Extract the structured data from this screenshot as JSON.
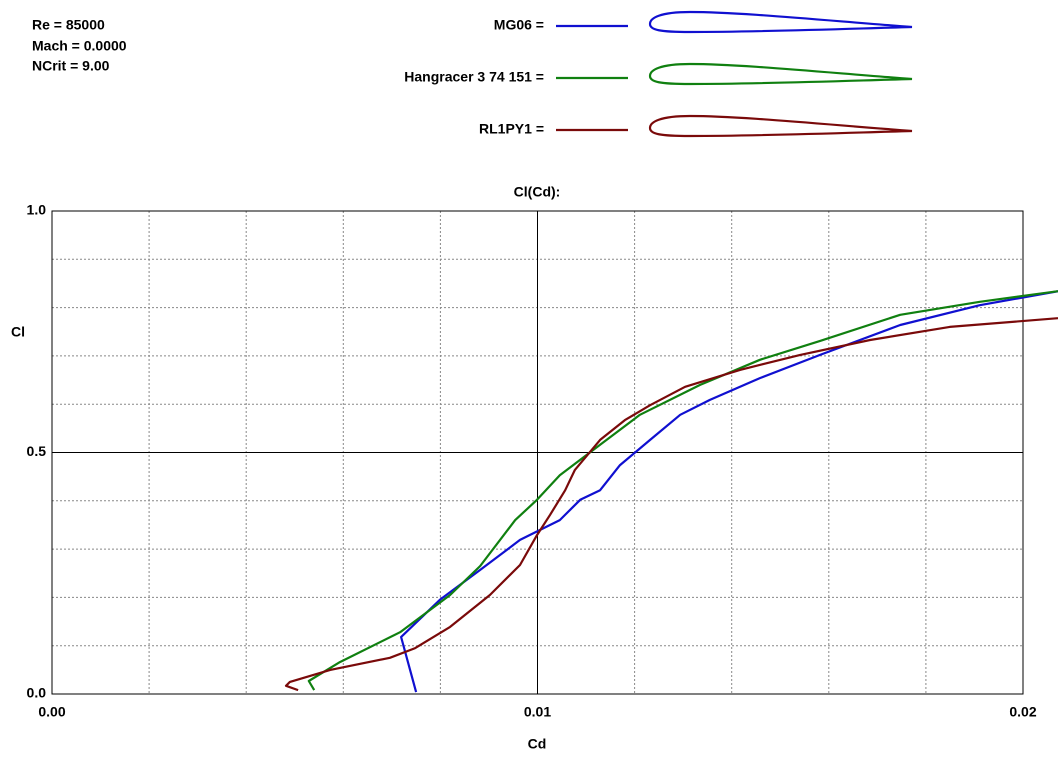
{
  "chart_data": {
    "type": "line",
    "title": "Cl(Cd):",
    "x_label": "Cd",
    "y_label": "Cl",
    "annotations": [
      "Re = 85000",
      "Mach = 0.0000",
      "NCrit = 9.00"
    ],
    "xlim": [
      0,
      0.02
    ],
    "ylim": [
      0,
      1
    ],
    "xticks": [
      {
        "value": 0,
        "label": "0.00"
      },
      0.01,
      0.02
    ],
    "yticks": [
      {
        "value": 0,
        "label": "0.0"
      },
      0.5,
      {
        "value": 1,
        "label": "1.0"
      }
    ],
    "xgrid": [
      0.002,
      0.004,
      0.006,
      0.008,
      0.012,
      0.014,
      0.016,
      0.018
    ],
    "ygrid": [
      0.1,
      0.2,
      0.3,
      0.4,
      0.6,
      0.7,
      0.8,
      0.9
    ],
    "grid": true,
    "series": [
      {
        "name": "MG06 =",
        "color": "#1010d0",
        "x": [
          0.0075,
          0.00719,
          0.00799,
          0.00882,
          0.00964,
          0.01046,
          0.01088,
          0.01129,
          0.0117,
          0.01232,
          0.01294,
          0.01355,
          0.01458,
          0.01582,
          0.01747,
          0.01911,
          0.02072
        ],
        "values": [
          0.004,
          0.118,
          0.195,
          0.257,
          0.319,
          0.36,
          0.402,
          0.422,
          0.474,
          0.526,
          0.578,
          0.609,
          0.654,
          0.702,
          0.764,
          0.805,
          0.834
        ]
      },
      {
        "name": "Hangracer 3 74 151 =",
        "color": "#108010",
        "x": [
          0.0054,
          0.00529,
          0.00593,
          0.00717,
          0.0082,
          0.00882,
          0.00954,
          0.00999,
          0.01046,
          0.01129,
          0.01211,
          0.01335,
          0.01458,
          0.01582,
          0.01747,
          0.01911,
          0.02072
        ],
        "values": [
          0.008,
          0.027,
          0.066,
          0.128,
          0.205,
          0.265,
          0.36,
          0.402,
          0.453,
          0.516,
          0.578,
          0.64,
          0.692,
          0.731,
          0.785,
          0.812,
          0.834
        ]
      },
      {
        "name": "RL1PY1 =",
        "color": "#7a0a0a",
        "x": [
          0.00507,
          0.00482,
          0.0049,
          0.00573,
          0.00696,
          0.00748,
          0.0082,
          0.00902,
          0.00964,
          0.00999,
          0.01026,
          0.01057,
          0.01077,
          0.01129,
          0.0118,
          0.01232,
          0.01304,
          0.01417,
          0.01541,
          0.01685,
          0.01849,
          0.02072
        ],
        "values": [
          0.008,
          0.017,
          0.025,
          0.05,
          0.075,
          0.095,
          0.139,
          0.205,
          0.267,
          0.329,
          0.371,
          0.422,
          0.464,
          0.526,
          0.567,
          0.598,
          0.636,
          0.671,
          0.702,
          0.733,
          0.76,
          0.778
        ]
      }
    ]
  }
}
